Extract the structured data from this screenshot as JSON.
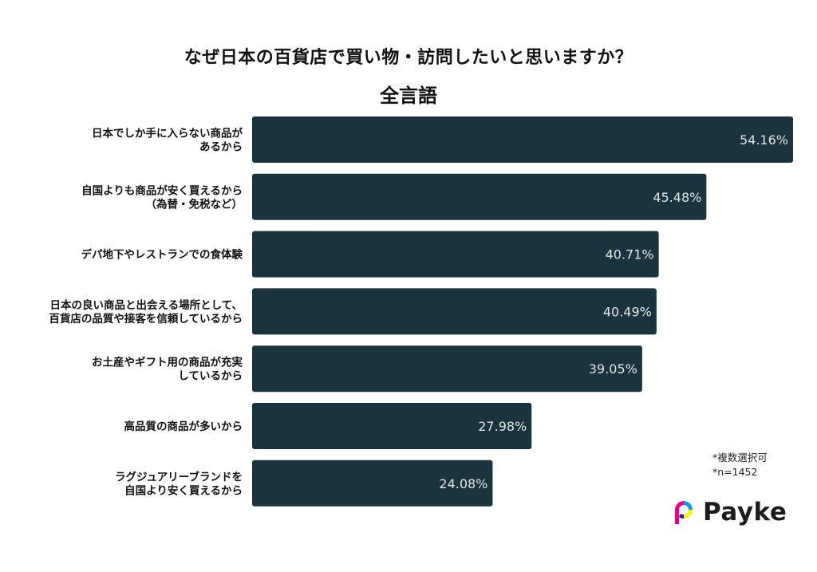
{
  "header": {
    "title": "なぜ日本の百貨店で買い物・訪問したいと思いますか？",
    "subtitle": "全言語"
  },
  "notes": {
    "multiple": "*複数選択可",
    "sample": "*n=1452"
  },
  "brand": {
    "name": "Payke",
    "logo_colors": [
      "#e6007e",
      "#00a0e9",
      "#fff100",
      "#1d2088"
    ]
  },
  "colors": {
    "bar": "#1b333c",
    "value_text": "#dfe6e8",
    "label_text": "#111111"
  },
  "chart_data": {
    "type": "bar",
    "orientation": "horizontal",
    "title": "なぜ日本の百貨店で買い物・訪問したいと思いますか？",
    "subtitle": "全言語",
    "categories": [
      [
        "日本でしか手に入らない商品が",
        "あるから"
      ],
      [
        "自国よりも商品が安く買えるから",
        "（為替・免税など）"
      ],
      [
        "デパ地下やレストランでの食体験"
      ],
      [
        "日本の良い商品と出会える場所として、",
        "百貨店の品質や接客を信頼しているから"
      ],
      [
        "お土産やギフト用の商品が充実",
        "しているから"
      ],
      [
        "高品質の商品が多いから"
      ],
      [
        "ラグジュアリーブランドを",
        "自国より安く買えるから"
      ]
    ],
    "values": [
      54.16,
      45.48,
      40.71,
      40.49,
      39.05,
      27.98,
      24.08
    ],
    "value_labels": [
      "54.16%",
      "45.48%",
      "40.71%",
      "40.49%",
      "39.05%",
      "27.98%",
      "24.08%"
    ],
    "unit": "%",
    "xlim": [
      0,
      54.16
    ],
    "grid": false,
    "legend": false
  }
}
